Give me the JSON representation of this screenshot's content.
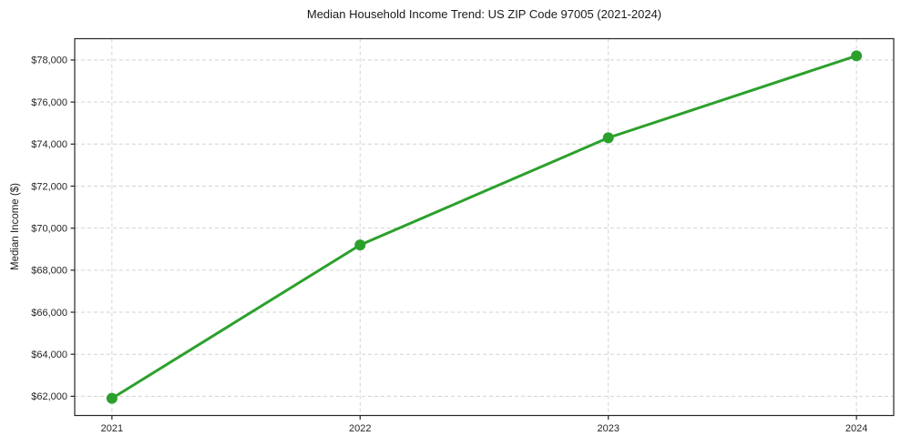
{
  "chart_data": {
    "type": "line",
    "title": "Median Household Income Trend: US ZIP Code 97005 (2021-2024)",
    "xlabel": "",
    "ylabel": "Median Income ($)",
    "x": [
      2021,
      2022,
      2023,
      2024
    ],
    "x_tick_labels": [
      "2021",
      "2022",
      "2023",
      "2024"
    ],
    "series": [
      {
        "name": "Median Household Income",
        "values": [
          61900,
          69200,
          74300,
          78200
        ]
      }
    ],
    "y_ticks": [
      62000,
      64000,
      66000,
      68000,
      70000,
      72000,
      74000,
      76000,
      78000
    ],
    "y_tick_labels": [
      "$62,000",
      "$64,000",
      "$66,000",
      "$68,000",
      "$70,000",
      "$72,000",
      "$74,000",
      "$76,000",
      "$78,000"
    ],
    "xlim": [
      2020.85,
      2024.15
    ],
    "ylim": [
      61085,
      79015
    ],
    "grid": true,
    "legend_position": "none",
    "colors": {
      "line": "#2ca02c",
      "marker": "#2ca02c",
      "grid": "#d3d3d3",
      "spine": "#262626",
      "text": "#262626"
    }
  }
}
